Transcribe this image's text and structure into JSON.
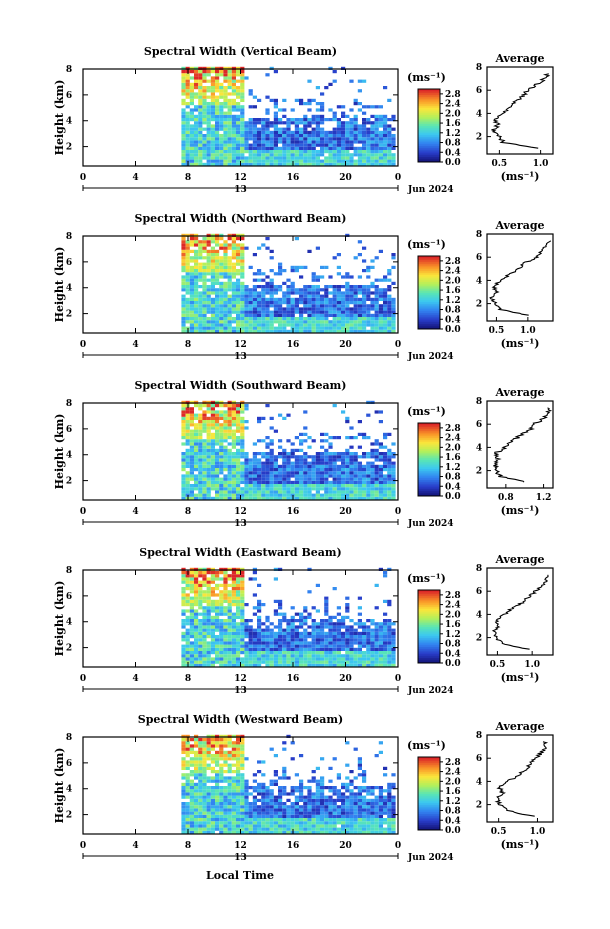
{
  "figure": {
    "x_axis_label": "Local Time",
    "date_label": "Jun 2024",
    "date_tick_label": "13",
    "colorbar_unit": "(ms⁻¹)",
    "avg_title": "Average",
    "avg_xlabel": "(ms⁻¹)",
    "y_axis_label": "Height (km)"
  },
  "chart_data": [
    {
      "type": "heatmap",
      "title": "Spectral Width (Vertical Beam)",
      "ylabel": "Height (km)",
      "xlabel": "Local Time",
      "x_ticks": [
        "0",
        "4",
        "8",
        "12",
        "16",
        "20",
        "0"
      ],
      "y_ticks": [
        "2",
        "4",
        "6",
        "8"
      ],
      "xlim": [
        0,
        24
      ],
      "ylim": [
        0.5,
        8
      ],
      "data_start_hour": 7.5,
      "colorbar": {
        "ticks": [
          "0.0",
          "0.4",
          "0.8",
          "1.2",
          "1.6",
          "2.0",
          "2.4",
          "2.8"
        ],
        "range": [
          0,
          3.0
        ]
      },
      "average_profile": {
        "title": "Average",
        "xlabel": "(ms⁻¹)",
        "x_ticks": [
          "0.5",
          "1.0"
        ],
        "xlim": [
          0.35,
          1.15
        ],
        "heights": [
          1.0,
          1.5,
          2.0,
          2.5,
          3.0,
          3.5,
          4.0,
          4.5,
          5.0,
          5.5,
          6.0,
          6.5,
          7.0,
          7.5
        ],
        "values": [
          0.95,
          0.55,
          0.5,
          0.42,
          0.48,
          0.45,
          0.55,
          0.62,
          0.7,
          0.78,
          0.85,
          0.95,
          1.05,
          1.1
        ]
      }
    },
    {
      "type": "heatmap",
      "title": "Spectral Width (Northward Beam)",
      "ylabel": "Height (km)",
      "xlabel": "Local Time",
      "x_ticks": [
        "0",
        "4",
        "8",
        "12",
        "16",
        "20",
        "0"
      ],
      "y_ticks": [
        "2",
        "4",
        "6",
        "8"
      ],
      "xlim": [
        0,
        24
      ],
      "ylim": [
        0.5,
        8
      ],
      "data_start_hour": 7.5,
      "colorbar": {
        "ticks": [
          "0.0",
          "0.4",
          "0.8",
          "1.2",
          "1.6",
          "2.0",
          "2.4",
          "2.8"
        ],
        "range": [
          0,
          3.0
        ]
      },
      "average_profile": {
        "title": "Average",
        "xlabel": "(ms⁻¹)",
        "x_ticks": [
          "0.5",
          "1.0"
        ],
        "xlim": [
          0.35,
          1.4
        ],
        "heights": [
          1.0,
          1.5,
          2.0,
          2.5,
          3.0,
          3.5,
          4.0,
          4.5,
          5.0,
          5.5,
          6.0,
          6.5,
          7.0,
          7.5
        ],
        "values": [
          1.0,
          0.55,
          0.48,
          0.42,
          0.5,
          0.45,
          0.58,
          0.7,
          0.85,
          0.95,
          1.15,
          1.2,
          1.3,
          1.35
        ]
      }
    },
    {
      "type": "heatmap",
      "title": "Spectral Width (Southward Beam)",
      "ylabel": "Height (km)",
      "xlabel": "Local Time",
      "x_ticks": [
        "0",
        "4",
        "8",
        "12",
        "16",
        "20",
        "0"
      ],
      "y_ticks": [
        "2",
        "4",
        "6",
        "8"
      ],
      "xlim": [
        0,
        24
      ],
      "ylim": [
        0.5,
        8
      ],
      "data_start_hour": 7.5,
      "colorbar": {
        "ticks": [
          "0.0",
          "0.4",
          "0.8",
          "1.2",
          "1.6",
          "2.0",
          "2.4",
          "2.8"
        ],
        "range": [
          0,
          3.0
        ]
      },
      "average_profile": {
        "title": "Average",
        "xlabel": "(ms⁻¹)",
        "x_ticks": [
          "0.8",
          "1.2"
        ],
        "xlim": [
          0.6,
          1.3
        ],
        "heights": [
          1.0,
          1.5,
          2.0,
          2.5,
          3.0,
          3.5,
          4.0,
          4.5,
          5.0,
          5.5,
          6.0,
          6.5,
          7.0,
          7.5
        ],
        "values": [
          1.0,
          0.75,
          0.7,
          0.68,
          0.72,
          0.7,
          0.78,
          0.85,
          0.95,
          1.05,
          1.1,
          1.2,
          1.25,
          1.25
        ]
      }
    },
    {
      "type": "heatmap",
      "title": "Spectral Width (Eastward Beam)",
      "ylabel": "Height (km)",
      "xlabel": "Local Time",
      "x_ticks": [
        "0",
        "4",
        "8",
        "12",
        "16",
        "20",
        "0"
      ],
      "y_ticks": [
        "2",
        "4",
        "6",
        "8"
      ],
      "xlim": [
        0,
        24
      ],
      "ylim": [
        0.5,
        8
      ],
      "data_start_hour": 7.5,
      "colorbar": {
        "ticks": [
          "0.0",
          "0.4",
          "0.8",
          "1.2",
          "1.6",
          "2.0",
          "2.4",
          "2.8"
        ],
        "range": [
          0,
          3.0
        ]
      },
      "average_profile": {
        "title": "Average",
        "xlabel": "(ms⁻¹)",
        "x_ticks": [
          "0.5",
          "1.0"
        ],
        "xlim": [
          0.35,
          1.3
        ],
        "heights": [
          1.0,
          1.5,
          2.0,
          2.5,
          3.0,
          3.5,
          4.0,
          4.5,
          5.0,
          5.5,
          6.0,
          6.5,
          7.0,
          7.5
        ],
        "values": [
          0.95,
          0.55,
          0.5,
          0.45,
          0.52,
          0.48,
          0.6,
          0.7,
          0.85,
          0.95,
          1.05,
          1.15,
          1.2,
          1.2
        ]
      }
    },
    {
      "type": "heatmap",
      "title": "Spectral Width (Westward Beam)",
      "ylabel": "Height (km)",
      "xlabel": "Local Time",
      "x_ticks": [
        "0",
        "4",
        "8",
        "12",
        "16",
        "20",
        "0"
      ],
      "y_ticks": [
        "2",
        "4",
        "6",
        "8"
      ],
      "xlim": [
        0,
        24
      ],
      "ylim": [
        0.5,
        8
      ],
      "data_start_hour": 7.5,
      "colorbar": {
        "ticks": [
          "0.0",
          "0.4",
          "0.8",
          "1.2",
          "1.6",
          "2.0",
          "2.4",
          "2.8"
        ],
        "range": [
          0,
          3.0
        ]
      },
      "average_profile": {
        "title": "Average",
        "xlabel": "(ms⁻¹)",
        "x_ticks": [
          "0.5",
          "1.0"
        ],
        "xlim": [
          0.35,
          1.2
        ],
        "heights": [
          1.0,
          1.5,
          2.0,
          2.5,
          3.0,
          3.5,
          4.0,
          4.5,
          5.0,
          5.5,
          6.0,
          6.5,
          7.0,
          7.5
        ],
        "values": [
          0.95,
          0.6,
          0.52,
          0.48,
          0.55,
          0.5,
          0.62,
          0.75,
          0.85,
          0.9,
          0.98,
          1.05,
          1.1,
          1.1
        ]
      }
    }
  ]
}
